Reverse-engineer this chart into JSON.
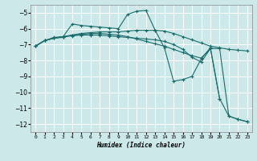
{
  "xlabel": "Humidex (Indice chaleur)",
  "background_color": "#cce8e8",
  "line_color": "#1a6b6b",
  "grid_color": "#ffffff",
  "xlim": [
    -0.5,
    23.5
  ],
  "ylim": [
    -12.5,
    -4.5
  ],
  "yticks": [
    -5,
    -6,
    -7,
    -8,
    -9,
    -10,
    -11,
    -12
  ],
  "xticks": [
    0,
    1,
    2,
    3,
    4,
    5,
    6,
    7,
    8,
    9,
    10,
    11,
    12,
    13,
    14,
    15,
    16,
    17,
    18,
    19,
    20,
    21,
    22,
    23
  ],
  "series": [
    {
      "x": [
        0,
        1,
        2,
        3,
        4,
        5,
        6,
        7,
        8,
        9,
        10,
        11,
        12,
        13,
        14,
        15,
        16,
        17,
        18,
        19,
        20,
        21,
        22,
        23
      ],
      "y": [
        -7.1,
        -6.75,
        -6.6,
        -6.5,
        -5.7,
        -5.8,
        -5.85,
        -5.9,
        -5.95,
        -6.0,
        -5.1,
        -4.9,
        -4.85,
        -6.1,
        -7.2,
        -9.3,
        -9.2,
        -9.0,
        -7.9,
        -7.2,
        -10.4,
        -11.5,
        -11.7,
        -11.85
      ]
    },
    {
      "x": [
        0,
        1,
        2,
        3,
        4,
        5,
        6,
        7,
        8,
        9,
        10,
        11,
        12,
        13,
        14,
        15,
        16,
        17,
        18,
        19,
        20,
        21,
        22,
        23
      ],
      "y": [
        -7.1,
        -6.75,
        -6.6,
        -6.55,
        -6.4,
        -6.3,
        -6.25,
        -6.2,
        -6.2,
        -6.2,
        -6.15,
        -6.1,
        -6.1,
        -6.1,
        -6.15,
        -6.3,
        -6.5,
        -6.7,
        -6.9,
        -7.1,
        -7.2,
        -7.3,
        -7.35,
        -7.4
      ]
    },
    {
      "x": [
        0,
        1,
        2,
        3,
        4,
        5,
        6,
        7,
        8,
        9,
        10,
        11,
        12,
        13,
        14,
        15,
        16,
        17,
        18,
        19,
        20
      ],
      "y": [
        -7.1,
        -6.75,
        -6.55,
        -6.5,
        -6.45,
        -6.4,
        -6.4,
        -6.4,
        -6.45,
        -6.5,
        -6.55,
        -6.6,
        -6.65,
        -6.7,
        -6.8,
        -7.0,
        -7.3,
        -7.8,
        -8.1,
        -7.25,
        -10.4
      ]
    },
    {
      "x": [
        0,
        1,
        2,
        3,
        4,
        5,
        6,
        7,
        8,
        9,
        10,
        11,
        12,
        13,
        14,
        15,
        16,
        17,
        18,
        19,
        20,
        21,
        22,
        23
      ],
      "y": [
        -7.1,
        -6.75,
        -6.6,
        -6.5,
        -6.4,
        -6.35,
        -6.3,
        -6.3,
        -6.35,
        -6.4,
        -6.5,
        -6.65,
        -6.8,
        -6.95,
        -7.1,
        -7.3,
        -7.5,
        -7.7,
        -7.85,
        -7.25,
        -7.25,
        -11.5,
        -11.7,
        -11.85
      ]
    }
  ]
}
